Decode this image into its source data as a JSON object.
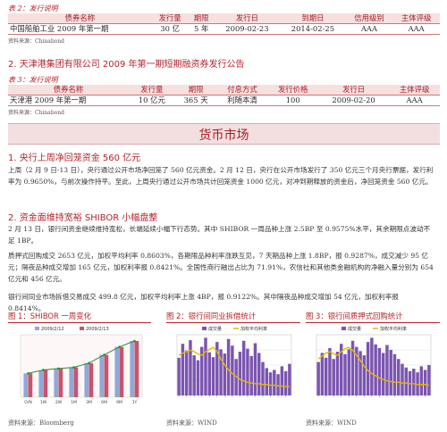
{
  "table2": {
    "caption": "表 2：发行说明",
    "headers": [
      "债券名称",
      "发行量",
      "期限",
      "发行日",
      "到期日",
      "信用级别",
      "主体评级"
    ],
    "row": [
      "中国船舶工业 2009 年第一期",
      "30 亿",
      "5 年",
      "2009-02-23",
      "2014-02-25",
      "AAA",
      "AAA"
    ],
    "source": "资料来源：Chinabond"
  },
  "section2": {
    "number": "2.",
    "title": "天津港集团有限公司 2009 年第一期短期融资券发行公告"
  },
  "table3": {
    "caption": "表 3：发行说明",
    "headers": [
      "债券名称",
      "发行量",
      "期限",
      "付息方式",
      "发行价格",
      "发行日",
      "主体评级"
    ],
    "row": [
      "天津港 2009 年第一期",
      "10 亿元",
      "365 天",
      "利随本清",
      "100",
      "2009-02-20",
      "AAA"
    ],
    "source": "资料来源：Chinabond"
  },
  "market_section": {
    "title": "货币市场"
  },
  "sub1": {
    "number": "1.",
    "title": "央行上周净回笼资金 560 亿元"
  },
  "para1": "上周（2 月 9 日-13 日），央行通过公开市场净回笼了 560 亿元资金。2 月 12 日，央行在公开市场发行了 350 亿元三个月央行票据，发行利率为 0.9650%，与前次操作持平。至此，上周央行通过公开市场共计回笼资金 1000 亿元，对冲到期释放的资金后，净回笼资金 560 亿元。",
  "sub2": {
    "number": "2.",
    "title": "资金面维持宽裕   SHIBOR 小幅盘整"
  },
  "para2": "2 月 13 日，银行间资金继续维持宽松，长端延续小幅下行态势。其中 SHIBOR 一周品种上涨 2.5BP 至 0.9575%水平，其余期限点波动不足 1BP。",
  "para3": "质押式回购成交 2653 亿元，加权平均利率 0.8603%，各期限品种利率涨跌互见，7 天期品种上涨 1.8BP，报 0.9287%，成交减少 95 亿元；隔夜品种成交增加 165 亿元，加权利率报 0.8421%。全国性商行融出占比为 71.91%，农信社和其他类金融机构的净融入量分别为 654 亿元和 456 亿元。",
  "para4": "银行间同业市场拆借交易成交 499.8 亿元，加权平均利率上涨 4BP，报 0.9122%。其中隔夜品种成交增加 54 亿元，加权利率报 0.8414%。",
  "figures": [
    {
      "title": "图 1：SHIBOR 一周变化",
      "source": "资料来源：Bloomberg",
      "legend": [
        "2009/2/12",
        "2009/2/13"
      ],
      "categories": [
        "O/N",
        "1W",
        "2W",
        "1M",
        "3M",
        "6M",
        "9M",
        "1Y"
      ]
    },
    {
      "title": "图 2：银行间同业拆借统计",
      "source": "资料来源：WIND",
      "legend": [
        "成交量",
        "加权平均利率"
      ]
    },
    {
      "title": "图 3：银行间质押式回购统计",
      "source": "资料来源：WIND",
      "legend": [
        "成交量",
        "加权平均利率"
      ]
    }
  ],
  "colors": {
    "accent": "#b5232b",
    "band": "#f3dfe0",
    "bar": "#7b55b0",
    "line": "#e6b800",
    "green": "#2e8b3a"
  },
  "chart_data": [
    {
      "type": "bar",
      "title": "SHIBOR 一周变化",
      "categories": [
        "O/N",
        "1W",
        "2W",
        "1M",
        "3M",
        "6M",
        "9M",
        "1Y"
      ],
      "series": [
        {
          "name": "2009/2/12",
          "values": [
            0.84,
            0.93,
            1.01,
            1.05,
            1.2,
            1.49,
            1.77,
            1.98
          ]
        },
        {
          "name": "2009/2/13",
          "values": [
            0.84,
            0.96,
            1.01,
            1.05,
            1.2,
            1.49,
            1.77,
            1.98
          ]
        }
      ]
    },
    {
      "type": "bar",
      "title": "银行间同业拆借统计",
      "series": [
        {
          "name": "成交量",
          "values": [
            0.62,
            0.85,
            0.74,
            0.91,
            0.66,
            0.58,
            0.8,
            0.95,
            0.71,
            0.63,
            0.88,
            0.76,
            0.69,
            0.93,
            0.82,
            0.6,
            0.72,
            0.9,
            0.77,
            0.65,
            0.86,
            0.7,
            0.55,
            0.45,
            0.38,
            0.42,
            0.35,
            0.48,
            0.4,
            0.52
          ]
        },
        {
          "name": "加权平均利率",
          "values": [
            0.55,
            0.58,
            0.6,
            0.62,
            0.6,
            0.57,
            0.55,
            0.6,
            0.63,
            0.66,
            0.6,
            0.5,
            0.42,
            0.35,
            0.3,
            0.26,
            0.22,
            0.2,
            0.18,
            0.17,
            0.16,
            0.16,
            0.15,
            0.15,
            0.14,
            0.14,
            0.13,
            0.13,
            0.12,
            0.12
          ]
        }
      ]
    },
    {
      "type": "bar",
      "title": "银行间质押式回购统计",
      "series": [
        {
          "name": "成交量",
          "values": [
            0.55,
            0.7,
            0.62,
            0.78,
            0.6,
            0.72,
            0.85,
            0.68,
            0.76,
            0.9,
            0.8,
            0.73,
            0.66,
            0.88,
            0.95,
            0.84,
            0.78,
            0.7,
            0.83,
            0.75,
            0.68,
            0.6,
            0.52,
            0.46,
            0.4,
            0.44,
            0.38,
            0.48,
            0.42,
            0.5
          ]
        },
        {
          "name": "加权平均利率",
          "values": [
            0.5,
            0.54,
            0.58,
            0.6,
            0.57,
            0.55,
            0.6,
            0.64,
            0.66,
            0.62,
            0.55,
            0.48,
            0.4,
            0.34,
            0.3,
            0.27,
            0.24,
            0.22,
            0.2,
            0.19,
            0.18,
            0.18,
            0.17,
            0.17,
            0.16,
            0.16,
            0.15,
            0.15,
            0.15,
            0.14
          ]
        }
      ]
    }
  ]
}
